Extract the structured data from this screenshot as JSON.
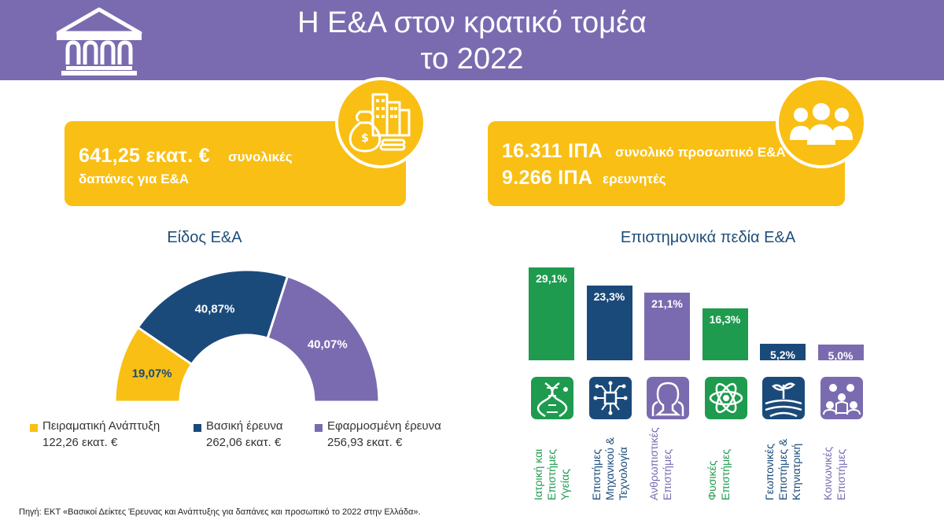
{
  "header": {
    "title_line1": "Η Ε&Α στον κρατικό τομέα",
    "title_line2": "το 2022"
  },
  "icons": {
    "header": "building-icon",
    "expenditure": "money-bag-buildings-icon",
    "personnel": "people-group-icon"
  },
  "colors": {
    "header_bg": "#7a6bb0",
    "accent_yellow": "#f9bf14",
    "navy": "#1a4a7a",
    "purple": "#7a6bb0",
    "green": "#1e9b4f",
    "title_blue": "#1f4e79"
  },
  "expenditure_box": {
    "line1_big": "641,25 εκατ. €",
    "line1_small": "συνολικές",
    "line2_small": "δαπάνες για Ε&Α"
  },
  "personnel_box": {
    "line1_big": "16.311 ΙΠΑ",
    "line1_small": "συνολικό προσωπικό Ε&Α",
    "line2_big": "9.266 ΙΠΑ",
    "line2_small": "ερευνητές"
  },
  "source": "Πηγή: ΕΚΤ «Βασικοί Δείκτες Έρευνας και Ανάπτυξης για δαπάνες και προσωπικό το 2022 στην Ελλάδα».",
  "chart_data": [
    {
      "type": "pie",
      "title": "Είδος Ε&Α",
      "shape": "half-donut",
      "slices": [
        {
          "name": "Πειραματική Ανάπτυξη",
          "value": 19.07,
          "label": "19,07%",
          "amount": "122,26 εκατ. €",
          "color": "#f9bf14"
        },
        {
          "name": "Βασική έρευνα",
          "value": 40.87,
          "label": "40,87%",
          "amount": "262,06 εκατ. €",
          "color": "#1a4a7a"
        },
        {
          "name": "Εφαρμοσμένη έρευνα",
          "value": 40.07,
          "label": "40,07%",
          "amount": "256,93 εκατ. €",
          "color": "#7a6bb0"
        }
      ],
      "legend": "bottom"
    },
    {
      "type": "bar",
      "title": "Επιστημονικά πεδία Ε&Α",
      "categories": [
        "Ιατρική και Επιστήμες Υγείας",
        "Επιστήμες Μηχανικού & Τεχνολογία",
        "Ανθρωπιστικές Επιστήμες",
        "Φυσικές Επιστήμες",
        "Γεωπονικές Επιστήμες & Κτηνιατρική",
        "Κοινωνικές Επιστήμες"
      ],
      "values": [
        29.1,
        23.3,
        21.1,
        16.3,
        5.2,
        5.0
      ],
      "value_labels": [
        "29,1%",
        "23,3%",
        "21,1%",
        "16,3%",
        "5,2%",
        "5,0%"
      ],
      "category_lines": [
        [
          "Ιατρική και",
          "Επιστήμες",
          "Υγείας"
        ],
        [
          "Επιστήμες",
          "Μηχανικού &",
          "Τεχνολογία"
        ],
        [
          "Ανθρωπιστικές",
          "Επιστήμες"
        ],
        [
          "Φυσικές",
          "Επιστήμες"
        ],
        [
          "Γεωπονικές",
          "Επιστήμες &",
          "Κτηνιατρική"
        ],
        [
          "Κοινωνικές",
          "Επιστήμες"
        ]
      ],
      "bar_colors": [
        "#1e9b4f",
        "#1a4a7a",
        "#7a6bb0",
        "#1e9b4f",
        "#1a4a7a",
        "#7a6bb0"
      ],
      "category_icons": [
        "dna-icon",
        "circuit-chip-icon",
        "person-head-icon",
        "atom-icon",
        "farm-field-sprout-icon",
        "people-network-icon"
      ],
      "ylim": [
        0,
        30
      ],
      "grid": false
    }
  ]
}
